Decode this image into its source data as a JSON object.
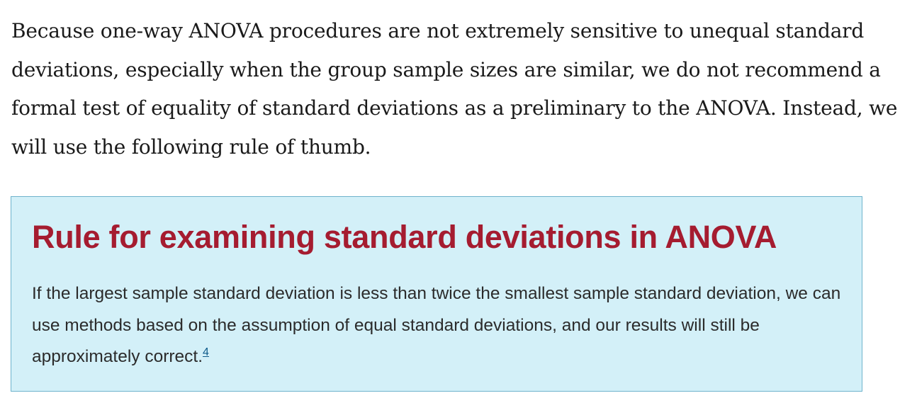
{
  "intro": {
    "text": "Because one-way ANOVA procedures are not extremely sensitive to unequal standard deviations, especially when the group sample sizes are similar, we do not recommend a formal test of equality of standard deviations as a preliminary to the ANOVA. Instead, we will use the following rule of thumb."
  },
  "callout": {
    "title": "Rule for examining standard deviations in ANOVA",
    "body": "If the largest sample standard deviation is less than twice the smallest sample standard deviation, we can use methods based on the assumption of equal standard deviations, and our results will still be approximately correct.",
    "footnote": "4"
  },
  "colors": {
    "title": "#a51c30",
    "callout_background": "#d3f0f8",
    "callout_border": "#6fb3cc",
    "footnote_link": "#0e5a8a"
  }
}
